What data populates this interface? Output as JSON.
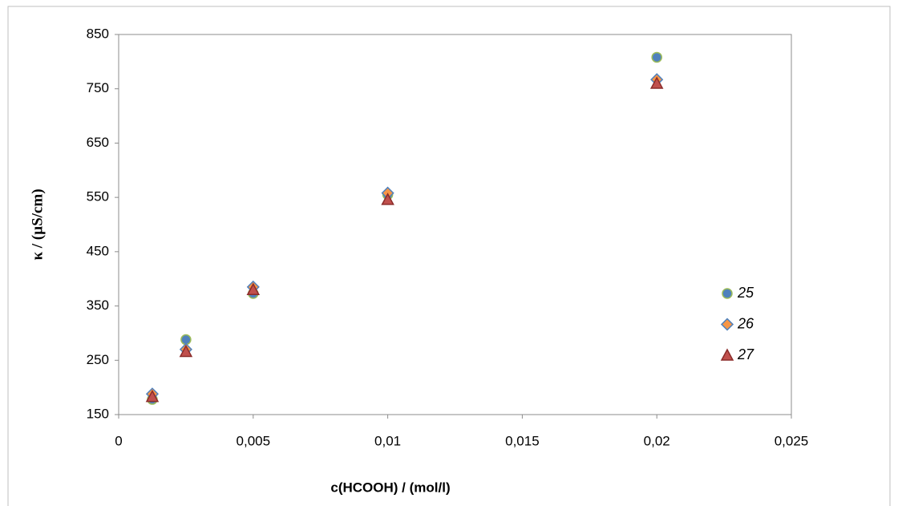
{
  "chart_data": {
    "type": "scatter",
    "x_label": "c(HCOOH) / (mol/l)",
    "y_label": "κ / (µS/cm)",
    "xlim": [
      0,
      0.025
    ],
    "xticks": [
      0,
      {
        "value": 0.005,
        "label": "0,005"
      },
      {
        "value": 0.01,
        "label": "0,01"
      },
      {
        "value": 0.015,
        "label": "0,015"
      },
      {
        "value": 0.02,
        "label": "0,02"
      },
      {
        "value": 0.025,
        "label": "0,025"
      }
    ],
    "ylim": [
      150,
      850
    ],
    "yticks": [
      150,
      250,
      350,
      450,
      550,
      650,
      750,
      850
    ],
    "grid": false,
    "legend": "right",
    "series": [
      {
        "name": "25",
        "marker": "circle",
        "color": "#4f81bd",
        "edge_color": "#9bbb59",
        "x": [
          0.00125,
          0.0025,
          0.005,
          0.01,
          0.02
        ],
        "values": [
          178,
          288,
          373,
          555,
          808
        ]
      },
      {
        "name": "26",
        "marker": "diamond",
        "color": "#f79646",
        "edge_color": "#4f81bd",
        "x": [
          0.00125,
          0.0025,
          0.005,
          0.01,
          0.02
        ],
        "values": [
          188,
          270,
          385,
          558,
          767
        ]
      },
      {
        "name": "27",
        "marker": "triangle",
        "color": "#c0504d",
        "edge_color": "#8b2c2a",
        "x": [
          0.00125,
          0.0025,
          0.005,
          0.01,
          0.02
        ],
        "values": [
          183,
          266,
          380,
          546,
          760
        ]
      }
    ]
  }
}
